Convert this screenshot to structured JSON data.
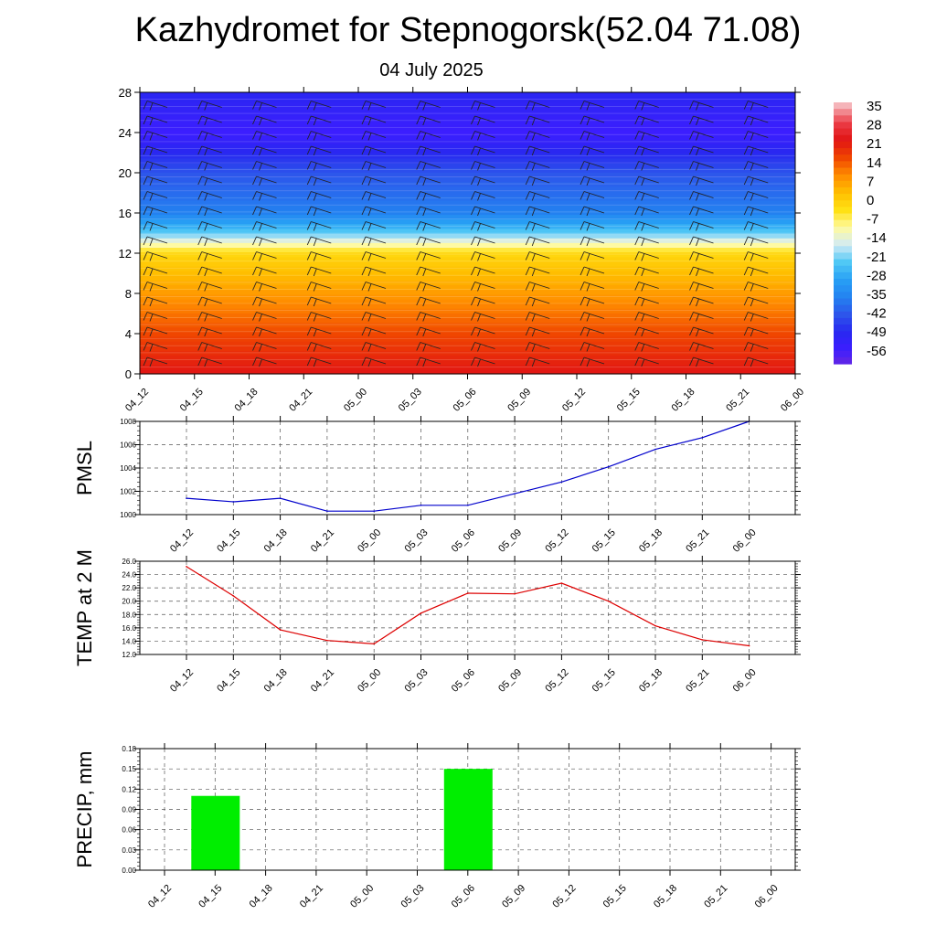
{
  "title": "Kazhydromet for Stepnogorsk(52.04 71.08)",
  "subtitle": "04 July 2025",
  "chart_data": [
    {
      "type": "heatmap",
      "name": "vertical temperature and wind cross-section",
      "x_categories": [
        "04_12",
        "04_15",
        "04_18",
        "04_21",
        "05_00",
        "05_03",
        "05_06",
        "05_09",
        "05_12",
        "05_15",
        "05_18",
        "05_21",
        "06_00"
      ],
      "ylim": [
        0,
        28
      ],
      "yticks": [
        0,
        4,
        8,
        12,
        16,
        20,
        24,
        28
      ],
      "colorbar_labels": [
        "35",
        "28",
        "21",
        "14",
        "7",
        "0",
        "-7",
        "-14",
        "-21",
        "-28",
        "-35",
        "-42",
        "-49",
        "-56"
      ],
      "approx_field": [
        {
          "y": 0,
          "value": 28
        },
        {
          "y": 4,
          "value": 21
        },
        {
          "y": 8,
          "value": 12
        },
        {
          "y": 12,
          "value": 2
        },
        {
          "y": 14,
          "value": -20
        },
        {
          "y": 16,
          "value": -35
        },
        {
          "y": 20,
          "value": -42
        },
        {
          "y": 24,
          "value": -56
        },
        {
          "y": 28,
          "value": -50
        }
      ]
    },
    {
      "type": "line",
      "ylabel": "PMSL",
      "categories": [
        "04_12",
        "04_15",
        "04_18",
        "04_21",
        "05_00",
        "05_03",
        "05_06",
        "05_09",
        "05_12",
        "05_15",
        "05_18",
        "05_21",
        "06_00"
      ],
      "values": [
        1001.4,
        1001.1,
        1001.4,
        1000.3,
        1000.3,
        1000.8,
        1000.8,
        1001.8,
        1002.8,
        1004.1,
        1005.6,
        1006.6,
        1008.0
      ],
      "ylim": [
        1000,
        1008
      ],
      "yticks": [
        "1000",
        "1002",
        "1004",
        "1006",
        "1008"
      ],
      "color": "#0000cc"
    },
    {
      "type": "line",
      "ylabel": "TEMP at 2 M",
      "categories": [
        "04_12",
        "04_15",
        "04_18",
        "04_21",
        "05_00",
        "05_03",
        "05_06",
        "05_09",
        "05_12",
        "05_15",
        "05_18",
        "05_21",
        "06_00"
      ],
      "values": [
        25.2,
        20.8,
        15.7,
        14.1,
        13.6,
        18.2,
        21.2,
        21.1,
        22.7,
        20.0,
        16.3,
        14.2,
        13.3
      ],
      "ylim": [
        12,
        26
      ],
      "yticks": [
        "12.0",
        "14.0",
        "16.0",
        "18.0",
        "20.0",
        "22.0",
        "24.0",
        "26.0"
      ],
      "color": "#dd0000"
    },
    {
      "type": "bar",
      "ylabel": "PRECIP, mm",
      "categories": [
        "04_12",
        "04_15",
        "04_18",
        "04_21",
        "05_00",
        "05_03",
        "05_06",
        "05_09",
        "05_12",
        "05_15",
        "05_18",
        "05_21",
        "06_00"
      ],
      "values": [
        0,
        0.11,
        0,
        0,
        0,
        0,
        0.15,
        0,
        0,
        0,
        0,
        0,
        0
      ],
      "ylim": [
        0,
        0.18
      ],
      "yticks": [
        "0.00",
        "0.03",
        "0.06",
        "0.09",
        "0.12",
        "0.15",
        "0.18"
      ],
      "color": "#00ee00"
    }
  ]
}
